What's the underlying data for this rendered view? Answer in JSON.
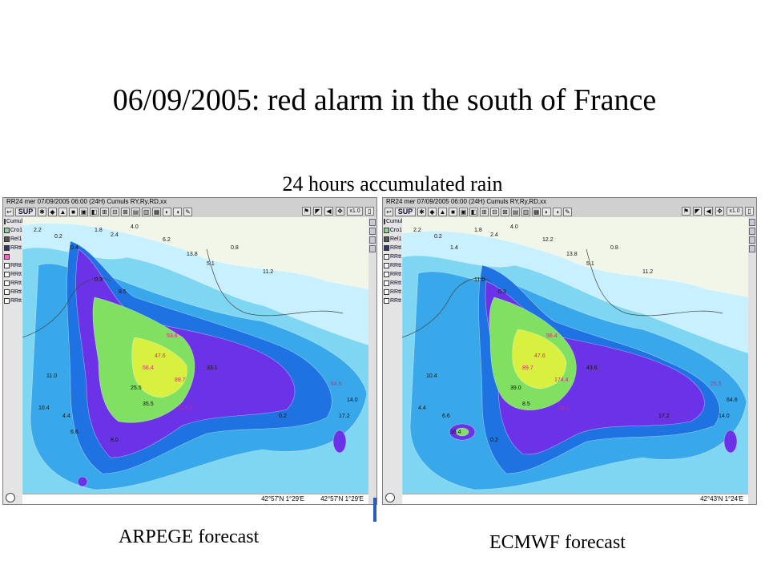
{
  "slide": {
    "title": "06/09/2005: red alarm in the south of France",
    "subtitle": "24 hours accumulated rain"
  },
  "colors": {
    "land": "#f2f6e8",
    "light_cyan": "#c8f0ff",
    "cyan": "#7fd6f2",
    "mid_blue": "#38a8ea",
    "blue": "#1e72e2",
    "purple": "#6b32e8",
    "green": "#7fe062",
    "yellow_green": "#d8f040",
    "magenta_labels": "#e0207a"
  },
  "panels": [
    {
      "id": "arpege",
      "caption": "ARPEGE forecast",
      "window_title": "RR24 mer 07/09/2005 06:00 (24H) Cumuls RY,Ry,RD,xx",
      "sup_label": "SUP",
      "zoom_label": "x1.0",
      "layers": [
        "Cumul",
        "Cro1",
        "Rel1",
        "RRtt",
        "",
        "RRtt",
        "RRtt",
        "RRtt",
        "RRtt",
        "RRtt"
      ],
      "coords": [
        "42°57'N  1°29'E",
        "42°57'N  1°29'E"
      ],
      "sample_values": [
        "2.2",
        "0.2",
        "0.4",
        "1.8",
        "2.4",
        "4.0",
        "6.2",
        "13.8",
        "5.1",
        "0.8",
        "11.2",
        "47.6",
        "53.6",
        "56.4",
        "89.7",
        "124.0",
        "35.5",
        "8.5",
        "0.3",
        "11.0",
        "10.4",
        "4.4",
        "6.6",
        "8.0",
        "0.2",
        "17.2",
        "14.0",
        "64.6",
        "25.5",
        "33.1"
      ]
    },
    {
      "id": "ecmwf",
      "caption": "ECMWF forecast",
      "window_title": "RR24 mer 07/09/2005 06:00 (24H) Cumuls RY,Ry,RD,xx",
      "sup_label": "SUP",
      "zoom_label": "x1.0",
      "layers": [
        "Cumul",
        "Cro1",
        "Rel1",
        "RRtt",
        "RRtt",
        "RRtt",
        "RRtt",
        "RRtt",
        "RRtt",
        "RRtt"
      ],
      "coords": [
        "42°43'N  1°24'E"
      ],
      "sample_values": [
        "2.2",
        "0.2",
        "1.4",
        "1.8",
        "2.4",
        "4.0",
        "12.2",
        "13.8",
        "5.1",
        "0.8",
        "11.2",
        "47.6",
        "56.4",
        "89.7",
        "174.4",
        "26.2",
        "8.5",
        "0.3",
        "11.0",
        "10.4",
        "4.4",
        "6.6",
        "16.4",
        "0.2",
        "17.2",
        "14.0",
        "64.6",
        "25.5",
        "39.0",
        "43.6"
      ]
    }
  ]
}
